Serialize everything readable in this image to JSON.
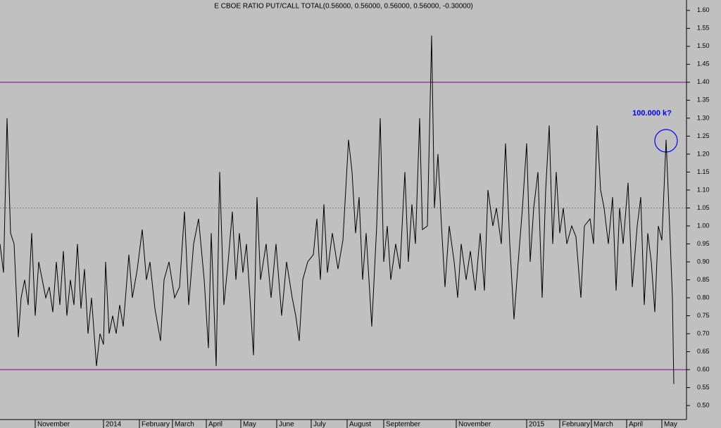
{
  "chart_data": {
    "type": "line",
    "title": "E CBOE RATIO PUT/CALL TOTAL(0.56000, 0.56000, 0.56000, 0.56000, -0.30000)",
    "annotation": "100.000 k?",
    "x": [
      0,
      5,
      10,
      15,
      20,
      26,
      30,
      35,
      40,
      45,
      50,
      55,
      60,
      65,
      70,
      75,
      80,
      85,
      90,
      95,
      100,
      105,
      110,
      115,
      120,
      125,
      130,
      137,
      142,
      147,
      150,
      155,
      160,
      165,
      170,
      175,
      183,
      188,
      195,
      202,
      208,
      213,
      220,
      228,
      233,
      240,
      248,
      255,
      262,
      268,
      275,
      282,
      290,
      296,
      300,
      307,
      312,
      318,
      324,
      330,
      335,
      340,
      345,
      350,
      355,
      360,
      365,
      370,
      378,
      385,
      392,
      400,
      407,
      415,
      420,
      425,
      430,
      437,
      445,
      450,
      455,
      460,
      465,
      472,
      480,
      487,
      495,
      500,
      505,
      510,
      515,
      520,
      528,
      535,
      540,
      545,
      550,
      555,
      562,
      568,
      575,
      580,
      585,
      590,
      596,
      600,
      607,
      613,
      617,
      622,
      627,
      632,
      638,
      645,
      650,
      655,
      662,
      668,
      675,
      682,
      688,
      693,
      700,
      705,
      712,
      718,
      724,
      730,
      736,
      742,
      748,
      753,
      758,
      764,
      770,
      775,
      780,
      785,
      790,
      795,
      800,
      805,
      812,
      818,
      825,
      830,
      838,
      843,
      848,
      853,
      858,
      864,
      870,
      875,
      880,
      885,
      892,
      898,
      905,
      910,
      915,
      920,
      925,
      930,
      935,
      940,
      946,
      950,
      955,
      957
    ],
    "values": [
      0.95,
      0.87,
      1.3,
      0.98,
      0.95,
      0.69,
      0.8,
      0.85,
      0.78,
      0.98,
      0.75,
      0.9,
      0.85,
      0.8,
      0.83,
      0.76,
      0.9,
      0.78,
      0.93,
      0.75,
      0.85,
      0.78,
      0.95,
      0.77,
      0.88,
      0.7,
      0.8,
      0.61,
      0.7,
      0.67,
      0.9,
      0.7,
      0.75,
      0.7,
      0.78,
      0.72,
      0.92,
      0.8,
      0.88,
      0.99,
      0.85,
      0.9,
      0.77,
      0.68,
      0.85,
      0.9,
      0.8,
      0.83,
      1.04,
      0.78,
      0.95,
      1.02,
      0.85,
      0.66,
      0.98,
      0.61,
      1.15,
      0.78,
      0.9,
      1.04,
      0.85,
      0.98,
      0.87,
      0.95,
      0.8,
      0.64,
      1.08,
      0.85,
      0.95,
      0.8,
      0.95,
      0.75,
      0.9,
      0.8,
      0.75,
      0.68,
      0.85,
      0.9,
      0.92,
      1.02,
      0.85,
      1.06,
      0.87,
      0.98,
      0.88,
      0.96,
      1.24,
      1.15,
      0.98,
      1.08,
      0.85,
      0.98,
      0.72,
      1.0,
      1.3,
      0.9,
      1.0,
      0.85,
      0.95,
      0.88,
      1.15,
      0.9,
      1.06,
      0.95,
      1.3,
      0.99,
      1.0,
      1.53,
      1.05,
      1.2,
      1.0,
      0.83,
      1.0,
      0.9,
      0.8,
      0.95,
      0.85,
      0.93,
      0.82,
      0.98,
      0.82,
      1.1,
      1.0,
      1.05,
      0.95,
      1.23,
      0.95,
      0.74,
      0.9,
      1.05,
      1.23,
      0.9,
      1.05,
      1.15,
      0.8,
      1.1,
      1.28,
      0.95,
      1.15,
      0.98,
      1.05,
      0.95,
      1.0,
      0.97,
      0.8,
      1.0,
      1.02,
      0.95,
      1.28,
      1.1,
      1.05,
      0.95,
      1.08,
      0.82,
      1.05,
      0.95,
      1.12,
      0.83,
      1.0,
      1.08,
      0.78,
      0.98,
      0.9,
      0.76,
      1.0,
      0.96,
      1.24,
      1.05,
      0.8,
      0.56
    ],
    "color": "#000000",
    "xlim": [
      0,
      975
    ],
    "xticks": [
      {
        "value": 50,
        "label": "November"
      },
      {
        "value": 147,
        "label": "2014"
      },
      {
        "value": 198,
        "label": "February"
      },
      {
        "value": 245,
        "label": "March"
      },
      {
        "value": 293,
        "label": "April"
      },
      {
        "value": 342,
        "label": "May"
      },
      {
        "value": 393,
        "label": "June"
      },
      {
        "value": 442,
        "label": "July"
      },
      {
        "value": 493,
        "label": "August"
      },
      {
        "value": 545,
        "label": "September"
      },
      {
        "value": 648,
        "label": "November"
      },
      {
        "value": 748,
        "label": "2015"
      },
      {
        "value": 795,
        "label": "February"
      },
      {
        "value": 840,
        "label": "March"
      },
      {
        "value": 890,
        "label": "April"
      },
      {
        "value": 940,
        "label": "May"
      }
    ],
    "ylim": [
      0.461,
      1.629
    ],
    "yticks": [
      {
        "value": 0.5,
        "label": "0.50"
      },
      {
        "value": 0.55,
        "label": "0.55"
      },
      {
        "value": 0.6,
        "label": "0.60"
      },
      {
        "value": 0.65,
        "label": "0.65"
      },
      {
        "value": 0.7,
        "label": "0.70"
      },
      {
        "value": 0.75,
        "label": "0.75"
      },
      {
        "value": 0.8,
        "label": "0.80"
      },
      {
        "value": 0.85,
        "label": "0.85"
      },
      {
        "value": 0.9,
        "label": "0.90"
      },
      {
        "value": 0.95,
        "label": "0.95"
      },
      {
        "value": 1.0,
        "label": "1.00"
      },
      {
        "value": 1.05,
        "label": "1.05"
      },
      {
        "value": 1.1,
        "label": "1.10"
      },
      {
        "value": 1.15,
        "label": "1.15"
      },
      {
        "value": 1.2,
        "label": "1.20"
      },
      {
        "value": 1.25,
        "label": "1.25"
      },
      {
        "value": 1.3,
        "label": "1.30"
      },
      {
        "value": 1.35,
        "label": "1.35"
      },
      {
        "value": 1.4,
        "label": "1.40"
      },
      {
        "value": 1.45,
        "label": "1.45"
      },
      {
        "value": 1.5,
        "label": "1.50"
      },
      {
        "value": 1.55,
        "label": "1.55"
      },
      {
        "value": 1.6,
        "label": "1.60"
      }
    ],
    "reference_lines": [
      {
        "value": 1.4,
        "color": "#8b008b",
        "dashed": false
      },
      {
        "value": 0.6,
        "color": "#8b008b",
        "dashed": false
      },
      {
        "value": 1.05,
        "color": "#808080",
        "dashed": true
      }
    ]
  }
}
